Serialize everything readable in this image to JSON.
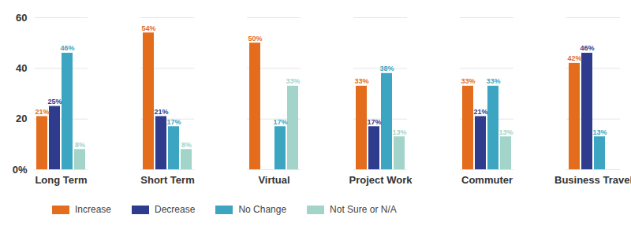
{
  "chart_data": {
    "type": "bar",
    "categories": [
      "Long Term",
      "Short Term",
      "Virtual",
      "Project Work",
      "Commuter",
      "Business Travel"
    ],
    "series": [
      {
        "name": "Increase",
        "color": "#e36c1d",
        "values": [
          21,
          54,
          50,
          33,
          33,
          42
        ],
        "value_labels": [
          "21%",
          "54%",
          "50%",
          "33%",
          "33%",
          "42%"
        ]
      },
      {
        "name": "Decrease",
        "color": "#2f3b8c",
        "values": [
          25,
          21,
          null,
          17,
          21,
          46
        ],
        "value_labels": [
          "25%",
          "21%",
          null,
          "17%",
          "21%",
          "46%"
        ]
      },
      {
        "name": "No Change",
        "color": "#3ba5c2",
        "values": [
          46,
          17,
          17,
          38,
          33,
          13
        ],
        "value_labels": [
          "46%",
          "17%",
          "17%",
          "38%",
          "33%",
          "13%"
        ]
      },
      {
        "name": "Not Sure or N/A",
        "color": "#a2d4c9",
        "values": [
          8,
          8,
          33,
          13,
          13,
          null
        ],
        "value_labels": [
          "8%",
          "8%",
          "33%",
          "13%",
          "13%",
          null
        ]
      }
    ],
    "ylim": [
      0,
      60
    ],
    "yticks": [
      {
        "value": 0,
        "label": "0%"
      },
      20,
      40,
      60
    ],
    "grid": true,
    "legend": "bottom",
    "data_labels": true
  }
}
